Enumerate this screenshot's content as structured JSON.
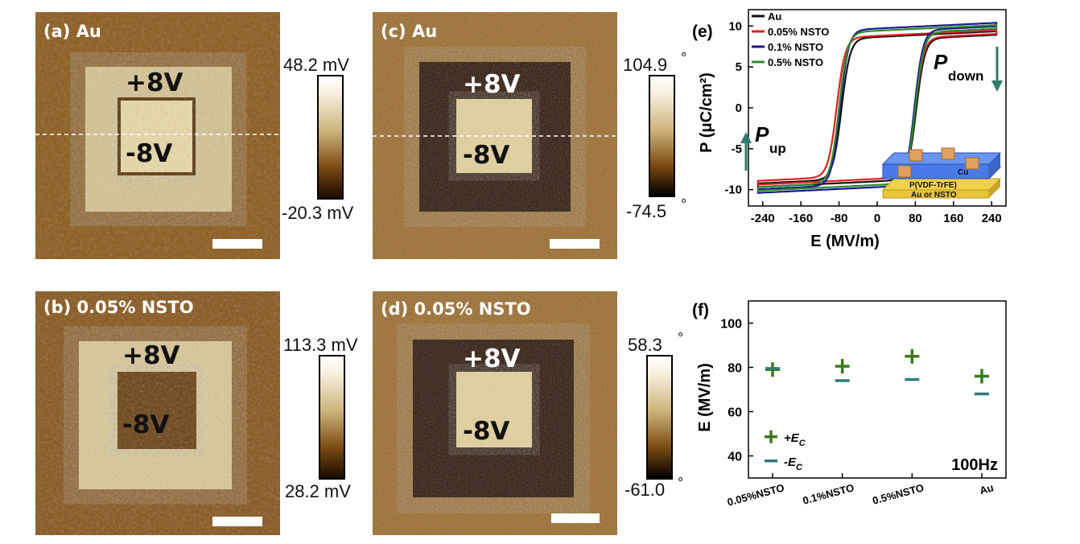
{
  "panels": {
    "a": {
      "label": "(a)  Au",
      "top_v": "+8V",
      "inner_v": "-8V",
      "cb_max": "48.2 mV",
      "cb_min": "-20.3 mV"
    },
    "b": {
      "label": "(b) 0.05% NSTO",
      "top_v": "+8V",
      "inner_v": "-8V",
      "cb_max": "113.3 mV",
      "cb_min": "28.2 mV"
    },
    "c": {
      "label": "(c)  Au",
      "top_v": "+8V",
      "inner_v": "-8V",
      "cb_max": "104.9",
      "cb_min": "-74.5",
      "cb_unit": "°"
    },
    "d": {
      "label": "(d)  0.05% NSTO",
      "top_v": "+8V",
      "inner_v": "-8V",
      "cb_max": "58.3",
      "cb_min": "-61.0",
      "cb_unit": "°"
    }
  },
  "colors": {
    "afm_dark": "#2b1406",
    "afm_mid": "#7a4a12",
    "afm_light": "#f3e6c2",
    "au": "#111111",
    "nsto005": "#e02020",
    "nsto01": "#1a1a8c",
    "nsto05": "#2f8a2f",
    "arrow": "#2f7a6a",
    "plus_marker": "#3a7a1a",
    "minus_marker": "#2f7a7a"
  },
  "chart_data": [
    {
      "type": "line",
      "panel_label": "(e)",
      "xlabel": "E (MV/m)",
      "ylabel": "P (μC/cm²)",
      "xlim": [
        -270,
        270
      ],
      "ylim": [
        -12,
        12
      ],
      "xticks": [
        -240,
        -160,
        -80,
        0,
        80,
        160,
        240
      ],
      "yticks": [
        -10,
        -5,
        0,
        5,
        10
      ],
      "legend_position": "top-left",
      "annotations": {
        "p_down": "P",
        "p_down_sub": "down",
        "p_up": "P",
        "p_up_sub": "up",
        "inset_top": "Cu",
        "inset_mid": "P(VDF-TrFE)",
        "inset_bottom": "Au or NSTO"
      },
      "series": [
        {
          "name": "Au",
          "color": "#111111",
          "Ec_pos": 82,
          "Ec_neg": -75,
          "Ps": 9.2,
          "Pmin": -9.5
        },
        {
          "name": "0.05% NSTO",
          "color": "#e02020",
          "Ec_pos": 80,
          "Ec_neg": -85,
          "Ps": 9.3,
          "Pmin": -9.2
        },
        {
          "name": "0.1%  NSTO",
          "color": "#1a1a8c",
          "Ec_pos": 78,
          "Ec_neg": -78,
          "Ps": 10.3,
          "Pmin": -10.3
        },
        {
          "name": "0.5%  NSTO",
          "color": "#2f8a2f",
          "Ec_pos": 80,
          "Ec_neg": -80,
          "Ps": 10.0,
          "Pmin": -10.0
        }
      ]
    },
    {
      "type": "scatter",
      "panel_label": "(f)",
      "xlabel": "",
      "ylabel": "E (MV/m)",
      "ylim": [
        30,
        110
      ],
      "yticks": [
        40,
        60,
        80,
        100
      ],
      "categories": [
        "0.05%NSTO",
        "0.1%NSTO",
        "0.5%NSTO",
        "Au"
      ],
      "annotation": "100Hz",
      "legend_position": "bottom-left",
      "series": [
        {
          "name": "+E",
          "sub": "C",
          "marker": "plus",
          "values": [
            79,
            80.5,
            85,
            76
          ]
        },
        {
          "name": "-E",
          "sub": "C",
          "marker": "minus",
          "values": [
            79.5,
            74,
            74.5,
            68
          ]
        }
      ]
    }
  ]
}
